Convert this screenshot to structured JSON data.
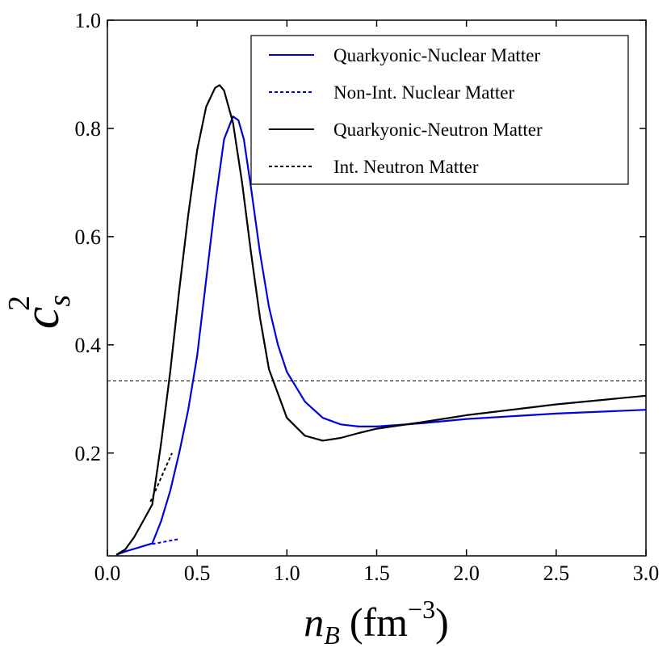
{
  "chart_data": {
    "type": "line",
    "title": "",
    "xlabel": {
      "main": "n",
      "sub": "B",
      "units": "(fm",
      "exp": "−3",
      "close": ")"
    },
    "ylabel": {
      "main": "c",
      "sub": "s",
      "sup": "2"
    },
    "xlim": [
      0.0,
      3.0
    ],
    "ylim": [
      0.01,
      1.0
    ],
    "xticks": [
      0.0,
      0.5,
      1.0,
      1.5,
      2.0,
      2.5,
      3.0
    ],
    "xtick_labels": [
      "0.0",
      "0.5",
      "1.0",
      "1.5",
      "2.0",
      "2.5",
      "3.0"
    ],
    "yticks": [
      0.2,
      0.4,
      0.6,
      0.8,
      1.0
    ],
    "ytick_labels": [
      "0.2",
      "0.4",
      "0.6",
      "0.8",
      "1.0"
    ],
    "grid": false,
    "legend_position": "top-right",
    "reference_line": {
      "y": 0.3333,
      "color": "#000000",
      "style": "dashed"
    },
    "series": [
      {
        "name": "Quarkyonic-Nuclear Matter",
        "color": "#0000dd",
        "style": "solid",
        "x": [
          0.05,
          0.1,
          0.15,
          0.2,
          0.25,
          0.3,
          0.35,
          0.4,
          0.45,
          0.5,
          0.55,
          0.6,
          0.65,
          0.7,
          0.73,
          0.76,
          0.8,
          0.85,
          0.9,
          0.95,
          1.0,
          1.1,
          1.2,
          1.3,
          1.4,
          1.5,
          1.75,
          2.0,
          2.5,
          3.0
        ],
        "y": [
          0.012,
          0.018,
          0.023,
          0.028,
          0.033,
          0.075,
          0.13,
          0.2,
          0.28,
          0.38,
          0.52,
          0.66,
          0.78,
          0.822,
          0.815,
          0.78,
          0.69,
          0.57,
          0.47,
          0.4,
          0.35,
          0.295,
          0.265,
          0.253,
          0.249,
          0.249,
          0.255,
          0.263,
          0.273,
          0.28
        ]
      },
      {
        "name": "Non-Int. Nuclear Matter",
        "color": "#0000dd",
        "style": "dashed",
        "x": [
          0.25,
          0.3,
          0.35,
          0.4
        ],
        "y": [
          0.032,
          0.035,
          0.038,
          0.041
        ]
      },
      {
        "name": "Quarkyonic-Neutron Matter",
        "color": "#000000",
        "style": "solid",
        "x": [
          0.05,
          0.1,
          0.15,
          0.2,
          0.25,
          0.3,
          0.35,
          0.4,
          0.45,
          0.5,
          0.55,
          0.6,
          0.625,
          0.65,
          0.7,
          0.75,
          0.8,
          0.85,
          0.9,
          1.0,
          1.1,
          1.2,
          1.3,
          1.4,
          1.5,
          1.75,
          2.0,
          2.5,
          3.0
        ],
        "y": [
          0.012,
          0.022,
          0.045,
          0.075,
          0.105,
          0.22,
          0.35,
          0.5,
          0.64,
          0.76,
          0.84,
          0.875,
          0.88,
          0.87,
          0.81,
          0.7,
          0.57,
          0.45,
          0.355,
          0.265,
          0.232,
          0.223,
          0.228,
          0.237,
          0.245,
          0.257,
          0.27,
          0.29,
          0.306
        ]
      },
      {
        "name": "Int. Neutron Matter",
        "color": "#000000",
        "style": "dashed",
        "x": [
          0.24,
          0.28,
          0.32,
          0.36
        ],
        "y": [
          0.11,
          0.14,
          0.17,
          0.2
        ]
      }
    ]
  }
}
